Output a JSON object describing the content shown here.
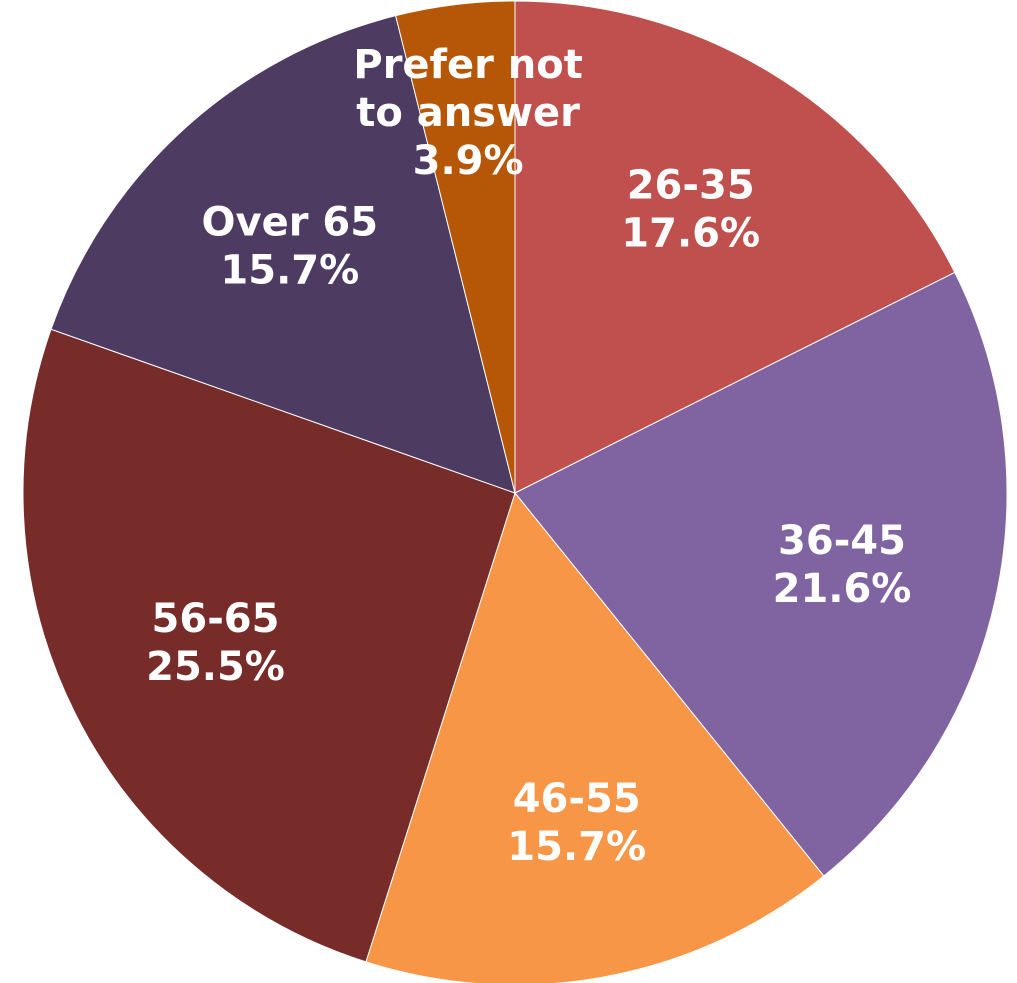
{
  "chart_data": {
    "type": "pie",
    "title": "",
    "start_angle_deg": 0,
    "direction": "clockwise",
    "slices": [
      {
        "label": "26-35",
        "label_lines": [
          "26-35"
        ],
        "value": 17.6,
        "value_text": "17.6%",
        "color": "#C0504D"
      },
      {
        "label": "36-45",
        "label_lines": [
          "36-45"
        ],
        "value": 21.6,
        "value_text": "21.6%",
        "color": "#8064A2"
      },
      {
        "label": "46-55",
        "label_lines": [
          "46-55"
        ],
        "value": 15.7,
        "value_text": "15.7%",
        "color": "#F79646"
      },
      {
        "label": "56-65",
        "label_lines": [
          "56-65"
        ],
        "value": 25.5,
        "value_text": "25.5%",
        "color": "#772C2A"
      },
      {
        "label": "Over 65",
        "label_lines": [
          "Over 65"
        ],
        "value": 15.7,
        "value_text": "15.7%",
        "color": "#4D3B62"
      },
      {
        "label": "Prefer not to answer",
        "label_lines": [
          "Prefer not",
          "to answer"
        ],
        "value": 3.9,
        "value_text": "3.9%",
        "color": "#B65708"
      }
    ]
  }
}
